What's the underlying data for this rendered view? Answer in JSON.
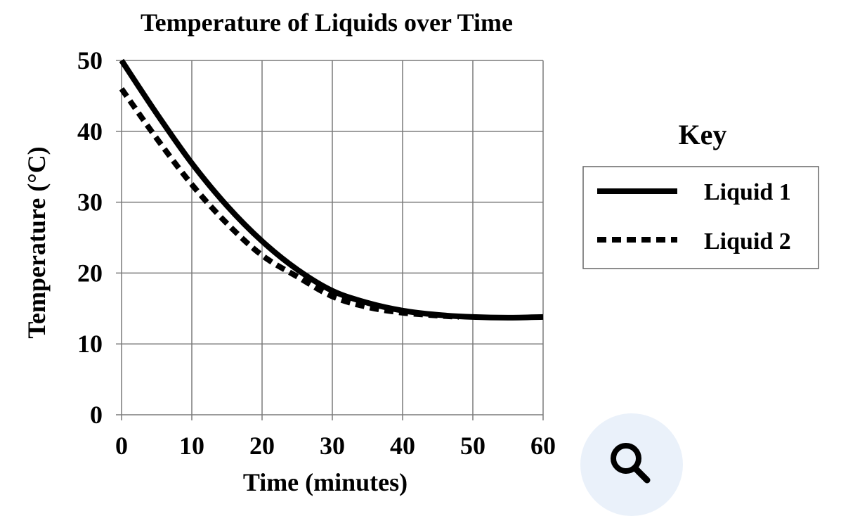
{
  "chart_data": {
    "type": "line",
    "title": "Temperature of Liquids over Time",
    "xlabel": "Time (minutes)",
    "ylabel": "Temperature (°C)",
    "xlim": [
      0,
      60
    ],
    "ylim": [
      0,
      50
    ],
    "x_ticks": [
      0,
      10,
      20,
      30,
      40,
      50,
      60
    ],
    "y_ticks": [
      0,
      10,
      20,
      30,
      40,
      50
    ],
    "grid": true,
    "legend_title": "Key",
    "legend_position": "right",
    "series": [
      {
        "name": "Liquid 1",
        "line_style": "solid",
        "color": "#000000",
        "x": [
          0,
          5,
          10,
          15,
          20,
          25,
          30,
          35,
          40,
          45,
          50,
          55,
          60
        ],
        "y": [
          50,
          42.5,
          35.5,
          29.5,
          24.5,
          20.5,
          17.5,
          15.8,
          14.7,
          14.1,
          13.8,
          13.7,
          13.8
        ]
      },
      {
        "name": "Liquid 2",
        "line_style": "dashed",
        "color": "#000000",
        "x": [
          0,
          5,
          10,
          15,
          20,
          25,
          30,
          35,
          40,
          45,
          48
        ],
        "y": [
          46,
          39,
          32.5,
          27,
          22.5,
          19.5,
          16.7,
          15.2,
          14.4,
          14,
          13.8
        ]
      }
    ]
  },
  "controls": {
    "zoom_icon": "magnifier-icon"
  }
}
